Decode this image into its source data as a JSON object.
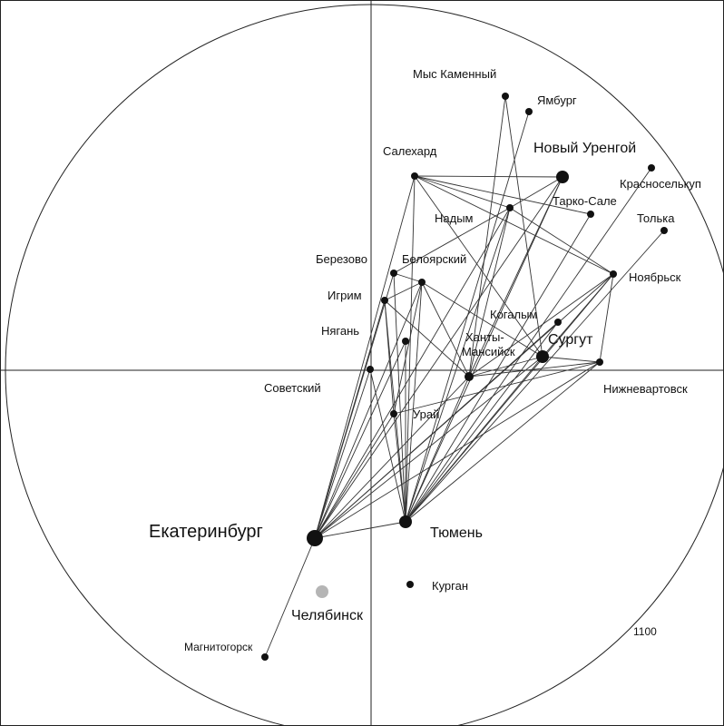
{
  "radius_label": "1100",
  "cities": [
    {
      "id": "mys-kamenny",
      "name": "Мыс Каменный",
      "size": "small"
    },
    {
      "id": "yamburg",
      "name": "Ямбург",
      "size": "small"
    },
    {
      "id": "salekhard",
      "name": "Салехард",
      "size": "small"
    },
    {
      "id": "novy-urengoy",
      "name": "Новый Уренгой",
      "size": "large"
    },
    {
      "id": "krasnoselkup",
      "name": "Красноселькуп",
      "size": "small"
    },
    {
      "id": "tarko-sale",
      "name": "Тарко-Сале",
      "size": "small"
    },
    {
      "id": "nadym",
      "name": "Надым",
      "size": "small"
    },
    {
      "id": "tolka",
      "name": "Толька",
      "size": "small"
    },
    {
      "id": "berezovo",
      "name": "Березово",
      "size": "small"
    },
    {
      "id": "beloyarsky",
      "name": "Белоярский",
      "size": "small"
    },
    {
      "id": "noyabrsk",
      "name": "Ноябрьск",
      "size": "small"
    },
    {
      "id": "igrim",
      "name": "Игрим",
      "size": "small"
    },
    {
      "id": "kogalym",
      "name": "Когалым",
      "size": "small"
    },
    {
      "id": "nyagan",
      "name": "Нягань",
      "size": "small"
    },
    {
      "id": "khanty-mansiysk",
      "name": "Ханты-Мансийск",
      "size": "medium"
    },
    {
      "id": "surgut",
      "name": "Сургут",
      "size": "large"
    },
    {
      "id": "sovetsky",
      "name": "Советский",
      "size": "small"
    },
    {
      "id": "nizhnevartovsk",
      "name": "Нижневартовск",
      "size": "small"
    },
    {
      "id": "uray",
      "name": "Урай",
      "size": "small"
    },
    {
      "id": "yekaterinburg",
      "name": "Екатеринбург",
      "size": "xlarge"
    },
    {
      "id": "tyumen",
      "name": "Тюмень",
      "size": "large"
    },
    {
      "id": "kurgan",
      "name": "Курган",
      "size": "small"
    },
    {
      "id": "chelyabinsk",
      "name": "Челябинск",
      "size": "large",
      "color": "#b5b5b5"
    },
    {
      "id": "magnitogorsk",
      "name": "Магнитогорск",
      "size": "small"
    }
  ],
  "routes": [
    [
      "yekaterinburg",
      "tyumen"
    ],
    [
      "yekaterinburg",
      "magnitogorsk"
    ],
    [
      "yekaterinburg",
      "salekhard"
    ],
    [
      "yekaterinburg",
      "novy-urengoy"
    ],
    [
      "yekaterinburg",
      "nadym"
    ],
    [
      "yekaterinburg",
      "berezovo"
    ],
    [
      "yekaterinburg",
      "beloyarsky"
    ],
    [
      "yekaterinburg",
      "igrim"
    ],
    [
      "yekaterinburg",
      "nyagan"
    ],
    [
      "yekaterinburg",
      "sovetsky"
    ],
    [
      "yekaterinburg",
      "uray"
    ],
    [
      "yekaterinburg",
      "khanty-mansiysk"
    ],
    [
      "yekaterinburg",
      "surgut"
    ],
    [
      "yekaterinburg",
      "nizhnevartovsk"
    ],
    [
      "yekaterinburg",
      "noyabrsk"
    ],
    [
      "yekaterinburg",
      "kogalym"
    ],
    [
      "tyumen",
      "yamburg"
    ],
    [
      "tyumen",
      "salekhard"
    ],
    [
      "tyumen",
      "novy-urengoy"
    ],
    [
      "tyumen",
      "nadym"
    ],
    [
      "tyumen",
      "tarko-sale"
    ],
    [
      "tyumen",
      "krasnoselkup"
    ],
    [
      "tyumen",
      "tolka"
    ],
    [
      "tyumen",
      "noyabrsk"
    ],
    [
      "tyumen",
      "berezovo"
    ],
    [
      "tyumen",
      "beloyarsky"
    ],
    [
      "tyumen",
      "igrim"
    ],
    [
      "tyumen",
      "nyagan"
    ],
    [
      "tyumen",
      "sovetsky"
    ],
    [
      "tyumen",
      "uray"
    ],
    [
      "tyumen",
      "khanty-mansiysk"
    ],
    [
      "tyumen",
      "surgut"
    ],
    [
      "tyumen",
      "nizhnevartovsk"
    ],
    [
      "tyumen",
      "kogalym"
    ],
    [
      "salekhard",
      "novy-urengoy"
    ],
    [
      "salekhard",
      "nadym"
    ],
    [
      "salekhard",
      "tarko-sale"
    ],
    [
      "salekhard",
      "noyabrsk"
    ],
    [
      "salekhard",
      "surgut"
    ],
    [
      "nadym",
      "novy-urengoy"
    ],
    [
      "nadym",
      "noyabrsk"
    ],
    [
      "nadym",
      "berezovo"
    ],
    [
      "nadym",
      "khanty-mansiysk"
    ],
    [
      "khanty-mansiysk",
      "igrim"
    ],
    [
      "khanty-mansiysk",
      "beloyarsky"
    ],
    [
      "khanty-mansiysk",
      "surgut"
    ],
    [
      "khanty-mansiysk",
      "nizhnevartovsk"
    ],
    [
      "khanty-mansiysk",
      "noyabrsk"
    ],
    [
      "khanty-mansiysk",
      "mys-kamenny"
    ],
    [
      "khanty-mansiysk",
      "novy-urengoy"
    ],
    [
      "surgut",
      "nizhnevartovsk"
    ],
    [
      "surgut",
      "noyabrsk"
    ],
    [
      "surgut",
      "mys-kamenny"
    ],
    [
      "noyabrsk",
      "nizhnevartovsk"
    ],
    [
      "beloyarsky",
      "igrim"
    ],
    [
      "beloyarsky",
      "berezovo"
    ],
    [
      "beloyarsky",
      "uray"
    ],
    [
      "beloyarsky",
      "surgut"
    ],
    [
      "uray",
      "igrim"
    ],
    [
      "uray",
      "nizhnevartovsk"
    ]
  ]
}
